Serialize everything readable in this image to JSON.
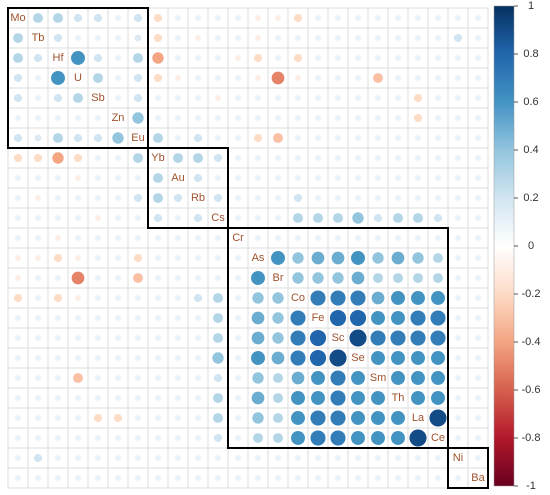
{
  "chart_data": {
    "type": "corrplot",
    "variables": [
      "Mo",
      "Tb",
      "Hf",
      "U",
      "Sb",
      "Zn",
      "Eu",
      "Yb",
      "Au",
      "Rb",
      "Cs",
      "Cr",
      "As",
      "Br",
      "Co",
      "Fe",
      "Sc",
      "Se",
      "Sm",
      "Th",
      "La",
      "Ce",
      "Ni",
      "Ba"
    ],
    "matrix": [
      [],
      [
        0.3
      ],
      [
        0.3,
        0.2
      ],
      [
        0.2,
        0.1,
        0.6
      ],
      [
        0.2,
        0.1,
        0.2,
        0.3
      ],
      [
        0.1,
        0.1,
        0.1,
        0.1,
        0.1
      ],
      [
        0.2,
        0.15,
        0.3,
        0.2,
        0.2,
        0.4
      ],
      [
        -0.2,
        -0.2,
        -0.4,
        -0.2,
        0.1,
        0.1,
        0.3
      ],
      [
        0.1,
        0.1,
        0.1,
        -0.1,
        0.1,
        0.1,
        0.1,
        0.3
      ],
      [
        0.1,
        -0.1,
        0.1,
        0.1,
        0.1,
        0.1,
        0.2,
        0.3,
        0.2
      ],
      [
        0.1,
        0.1,
        0.1,
        0.1,
        -0.1,
        0.1,
        0.1,
        0.2,
        0.1,
        0.2
      ],
      [
        0.1,
        0.1,
        -0.1,
        0.1,
        0.1,
        0.1,
        0.1,
        0.1,
        0.1,
        0.1,
        0.1
      ],
      [
        -0.1,
        -0.1,
        -0.2,
        -0.1,
        0.1,
        0.1,
        -0.2,
        0.1,
        0.1,
        0.1,
        0.1,
        0.1
      ],
      [
        -0.1,
        0.1,
        0.1,
        -0.5,
        0.1,
        0.1,
        -0.3,
        0.1,
        0.1,
        0.1,
        0.1,
        0.1,
        0.6
      ],
      [
        -0.2,
        0.1,
        -0.2,
        -0.1,
        0.1,
        0.1,
        0.1,
        0.1,
        0.1,
        0.2,
        0.3,
        0.1,
        0.4,
        0.4
      ],
      [
        0.1,
        0.1,
        0.1,
        0.1,
        0.1,
        0.1,
        0.1,
        0.1,
        0.1,
        0.1,
        0.3,
        0.1,
        0.5,
        0.4,
        0.7
      ],
      [
        0.1,
        0.1,
        0.1,
        0.1,
        0.1,
        0.1,
        0.1,
        0.1,
        0.1,
        0.1,
        0.3,
        0.1,
        0.5,
        0.4,
        0.7,
        0.8
      ],
      [
        0.1,
        0.1,
        0.1,
        0.1,
        0.1,
        0.1,
        0.1,
        0.1,
        0.1,
        0.1,
        0.4,
        0.1,
        0.6,
        0.5,
        0.7,
        0.8,
        0.9
      ],
      [
        0.1,
        0.1,
        0.1,
        -0.3,
        0.1,
        0.1,
        0.1,
        0.1,
        0.1,
        0.1,
        0.2,
        0.1,
        0.4,
        0.3,
        0.5,
        0.6,
        0.7,
        0.6
      ],
      [
        0.1,
        0.1,
        0.1,
        0.1,
        0.1,
        0.1,
        0.1,
        0.1,
        0.1,
        0.1,
        0.3,
        0.1,
        0.5,
        0.3,
        0.6,
        0.6,
        0.7,
        0.6,
        0.6
      ],
      [
        0.1,
        0.1,
        0.1,
        0.1,
        -0.2,
        -0.2,
        0.1,
        0.1,
        0.1,
        0.1,
        0.3,
        0.1,
        0.4,
        0.3,
        0.6,
        0.7,
        0.7,
        0.6,
        0.6,
        0.6
      ],
      [
        0.1,
        0.1,
        0.1,
        0.1,
        0.1,
        0.1,
        0.1,
        0.1,
        0.1,
        0.1,
        0.2,
        0.1,
        0.3,
        0.3,
        0.6,
        0.7,
        0.7,
        0.6,
        0.6,
        0.6,
        0.9
      ],
      [
        0.1,
        0.2,
        0.1,
        0.1,
        0.1,
        0.1,
        0.1,
        0.1,
        0.1,
        0.1,
        0.1,
        0.1,
        0.1,
        0.1,
        0.1,
        0.1,
        0.1,
        0.1,
        0.1,
        0.1,
        0.1,
        0.1
      ],
      [
        0.1,
        0.1,
        0.1,
        0.1,
        0.1,
        0.1,
        0.1,
        0.1,
        0.1,
        0.1,
        0.1,
        0.1,
        0.1,
        0.1,
        0.1,
        0.1,
        0.1,
        0.1,
        0.1,
        0.1,
        0.1,
        0.1,
        0.1
      ]
    ],
    "colorlim": [
      -1,
      1
    ],
    "colorticks": [
      -1,
      -0.8,
      -0.6,
      -0.4,
      -0.2,
      0,
      0.2,
      0.4,
      0.6,
      0.8,
      1
    ]
  }
}
